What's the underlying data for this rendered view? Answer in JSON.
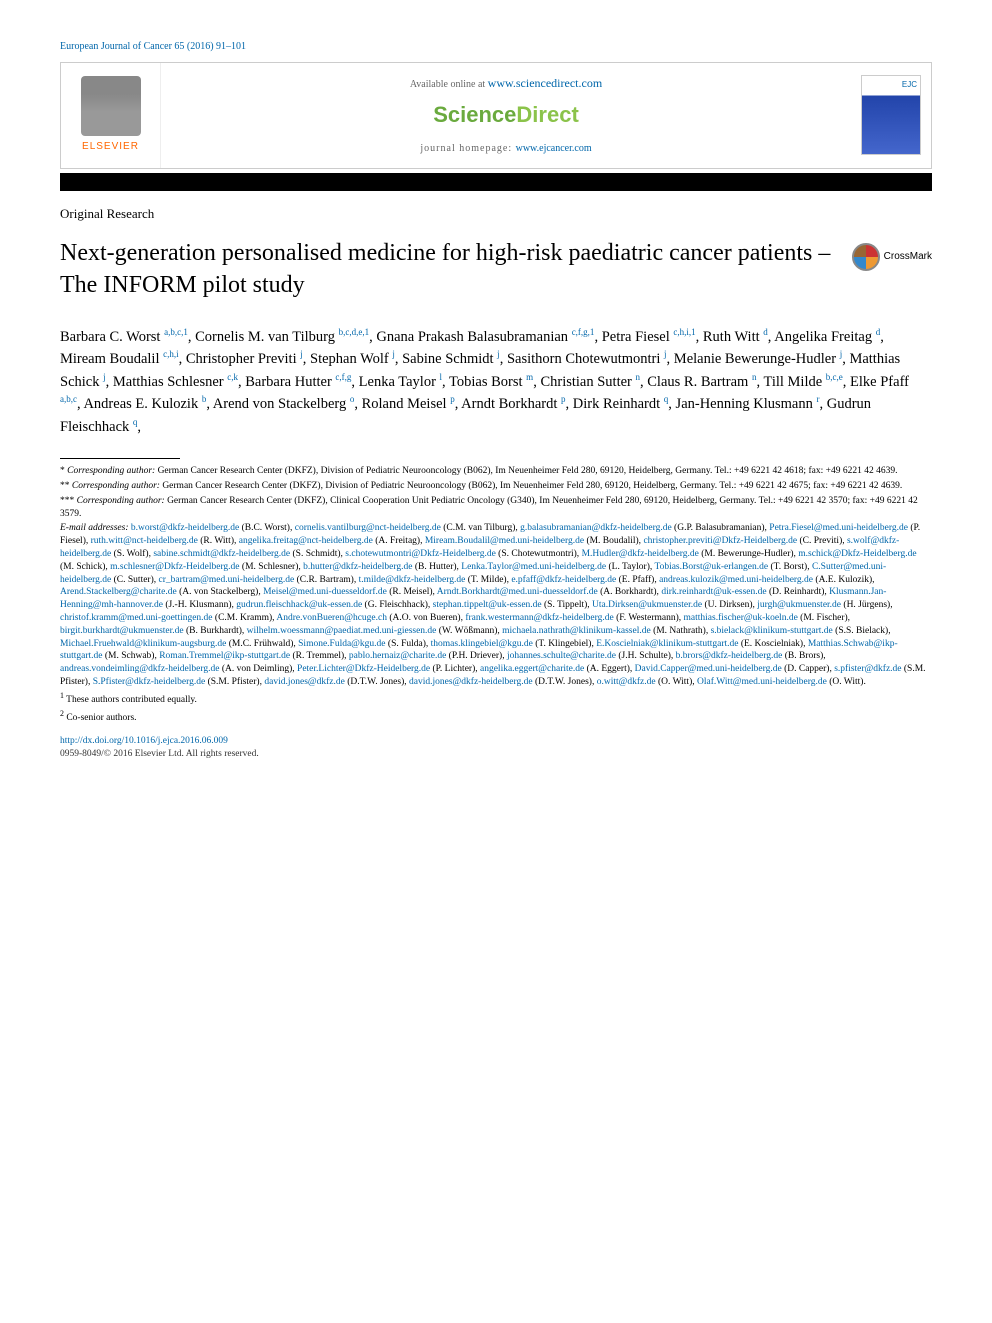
{
  "journal_ref": "European Journal of Cancer 65 (2016) 91–101",
  "header": {
    "available_text": "Available online at ",
    "available_link": "www.sciencedirect.com",
    "sciencedirect_science": "Science",
    "sciencedirect_direct": "Direct",
    "homepage_label": "journal homepage: ",
    "homepage_link": "www.ejcancer.com",
    "elsevier_label": "ELSEVIER",
    "crossmark_label": "CrossMark"
  },
  "article_type": "Original Research",
  "title": "Next-generation personalised medicine for high-risk paediatric cancer patients – The INFORM pilot study",
  "authors": [
    {
      "name": "Barbara C. Worst",
      "aff": "a,b,c,1"
    },
    {
      "name": "Cornelis M. van Tilburg",
      "aff": "b,c,d,e,1"
    },
    {
      "name": "Gnana Prakash Balasubramanian",
      "aff": "c,f,g,1"
    },
    {
      "name": "Petra Fiesel",
      "aff": "c,h,i,1"
    },
    {
      "name": "Ruth Witt",
      "aff": "d"
    },
    {
      "name": "Angelika Freitag",
      "aff": "d"
    },
    {
      "name": "Miream Boudalil",
      "aff": "c,h,i"
    },
    {
      "name": "Christopher Previti",
      "aff": "j"
    },
    {
      "name": "Stephan Wolf",
      "aff": "j"
    },
    {
      "name": "Sabine Schmidt",
      "aff": "j"
    },
    {
      "name": "Sasithorn Chotewutmontri",
      "aff": "j"
    },
    {
      "name": "Melanie Bewerunge-Hudler",
      "aff": "j"
    },
    {
      "name": "Matthias Schick",
      "aff": "j"
    },
    {
      "name": "Matthias Schlesner",
      "aff": "c,k"
    },
    {
      "name": "Barbara Hutter",
      "aff": "c,f,g"
    },
    {
      "name": "Lenka Taylor",
      "aff": "l"
    },
    {
      "name": "Tobias Borst",
      "aff": "m"
    },
    {
      "name": "Christian Sutter",
      "aff": "n"
    },
    {
      "name": "Claus R. Bartram",
      "aff": "n"
    },
    {
      "name": "Till Milde",
      "aff": "b,c,e"
    },
    {
      "name": "Elke Pfaff",
      "aff": "a,b,c"
    },
    {
      "name": "Andreas E. Kulozik",
      "aff": "b"
    },
    {
      "name": "Arend von Stackelberg",
      "aff": "o"
    },
    {
      "name": "Roland Meisel",
      "aff": "p"
    },
    {
      "name": "Arndt Borkhardt",
      "aff": "p"
    },
    {
      "name": "Dirk Reinhardt",
      "aff": "q"
    },
    {
      "name": "Jan-Henning Klusmann",
      "aff": "r"
    },
    {
      "name": "Gudrun Fleischhack",
      "aff": "q"
    }
  ],
  "corresponding": [
    {
      "mark": "*",
      "label": "Corresponding author:",
      "text": " German Cancer Research Center (DKFZ), Division of Pediatric Neurooncology (B062), Im Neuenheimer Feld 280, 69120, Heidelberg, Germany. Tel.: +49 6221 42 4618; fax: +49 6221 42 4639."
    },
    {
      "mark": "**",
      "label": "Corresponding author:",
      "text": " German Cancer Research Center (DKFZ), Division of Pediatric Neurooncology (B062), Im Neuenheimer Feld 280, 69120, Heidelberg, Germany. Tel.: +49 6221 42 4675; fax: +49 6221 42 4639."
    },
    {
      "mark": "***",
      "label": "Corresponding author:",
      "text": " German Cancer Research Center (DKFZ), Clinical Cooperation Unit Pediatric Oncology (G340), Im Neuenheimer Feld 280, 69120, Heidelberg, Germany. Tel.: +49 6221 42 3570; fax: +49 6221 42 3579."
    }
  ],
  "emails_label": "E-mail addresses: ",
  "emails": [
    {
      "email": "b.worst@dkfz-heidelberg.de",
      "person": "(B.C. Worst)"
    },
    {
      "email": "cornelis.vantilburg@nct-heidelberg.de",
      "person": "(C.M. van Tilburg)"
    },
    {
      "email": "g.balasubramanian@dkfz-heidelberg.de",
      "person": "(G.P. Balasubramanian)"
    },
    {
      "email": "Petra.Fiesel@med.uni-heidelberg.de",
      "person": "(P. Fiesel)"
    },
    {
      "email": "ruth.witt@nct-heidelberg.de",
      "person": "(R. Witt)"
    },
    {
      "email": "angelika.freitag@nct-heidelberg.de",
      "person": "(A. Freitag)"
    },
    {
      "email": "Miream.Boudalil@med.uni-heidelberg.de",
      "person": "(M. Boudalil)"
    },
    {
      "email": "christopher.previti@Dkfz-Heidelberg.de",
      "person": "(C. Previti)"
    },
    {
      "email": "s.wolf@dkfz-heidelberg.de",
      "person": "(S. Wolf)"
    },
    {
      "email": "sabine.schmidt@dkfz-heidelberg.de",
      "person": "(S. Schmidt)"
    },
    {
      "email": "s.chotewutmontri@Dkfz-Heidelberg.de",
      "person": "(S. Chotewutmontri)"
    },
    {
      "email": "M.Hudler@dkfz-heidelberg.de",
      "person": "(M. Bewerunge-Hudler)"
    },
    {
      "email": "m.schick@Dkfz-Heidelberg.de",
      "person": "(M. Schick)"
    },
    {
      "email": "m.schlesner@Dkfz-Heidelberg.de",
      "person": "(M. Schlesner)"
    },
    {
      "email": "b.hutter@dkfz-heidelberg.de",
      "person": "(B. Hutter)"
    },
    {
      "email": "Lenka.Taylor@med.uni-heidelberg.de",
      "person": "(L. Taylor)"
    },
    {
      "email": "Tobias.Borst@uk-erlangen.de",
      "person": "(T. Borst)"
    },
    {
      "email": "C.Sutter@med.uni-heidelberg.de",
      "person": "(C. Sutter)"
    },
    {
      "email": "cr_bartram@med.uni-heidelberg.de",
      "person": "(C.R. Bartram)"
    },
    {
      "email": "t.milde@dkfz-heidelberg.de",
      "person": "(T. Milde)"
    },
    {
      "email": "e.pfaff@dkfz-heidelberg.de",
      "person": "(E. Pfaff)"
    },
    {
      "email": "andreas.kulozik@med.uni-heidelberg.de",
      "person": "(A.E. Kulozik)"
    },
    {
      "email": "Arend.Stackelberg@charite.de",
      "person": "(A. von Stackelberg)"
    },
    {
      "email": "Meisel@med.uni-duesseldorf.de",
      "person": "(R. Meisel)"
    },
    {
      "email": "Arndt.Borkhardt@med.uni-duesseldorf.de",
      "person": "(A. Borkhardt)"
    },
    {
      "email": "dirk.reinhardt@uk-essen.de",
      "person": "(D. Reinhardt)"
    },
    {
      "email": "Klusmann.Jan-Henning@mh-hannover.de",
      "person": "(J.-H. Klusmann)"
    },
    {
      "email": "gudrun.fleischhack@uk-essen.de",
      "person": "(G. Fleischhack)"
    },
    {
      "email": "stephan.tippelt@uk-essen.de",
      "person": "(S. Tippelt)"
    },
    {
      "email": "Uta.Dirksen@ukmuenster.de",
      "person": "(U. Dirksen)"
    },
    {
      "email": "jurgh@ukmuenster.de",
      "person": "(H. Jürgens)"
    },
    {
      "email": "christof.kramm@med.uni-goettingen.de",
      "person": "(C.M. Kramm)"
    },
    {
      "email": "Andre.vonBueren@hcuge.ch",
      "person": "(A.O. von Bueren)"
    },
    {
      "email": "frank.westermann@dkfz-heidelberg.de",
      "person": "(F. Westermann)"
    },
    {
      "email": "matthias.fischer@uk-koeln.de",
      "person": "(M. Fischer)"
    },
    {
      "email": "birgit.burkhardt@ukmuenster.de",
      "person": "(B. Burkhardt)"
    },
    {
      "email": "wilhelm.woessmann@paediat.med.uni-giessen.de",
      "person": "(W. Wößmann)"
    },
    {
      "email": "michaela.nathrath@klinikum-kassel.de",
      "person": "(M. Nathrath)"
    },
    {
      "email": "s.bielack@klinikum-stuttgart.de",
      "person": "(S.S. Bielack)"
    },
    {
      "email": "Michael.Fruehwald@klinikum-augsburg.de",
      "person": "(M.C. Frühwald)"
    },
    {
      "email": "Simone.Fulda@kgu.de",
      "person": "(S. Fulda)"
    },
    {
      "email": "thomas.klingebiel@kgu.de",
      "person": "(T. Klingebiel)"
    },
    {
      "email": "E.Koscielniak@klinikum-stuttgart.de",
      "person": "(E. Koscielniak)"
    },
    {
      "email": "Matthias.Schwab@ikp-stuttgart.de",
      "person": "(M. Schwab)"
    },
    {
      "email": "Roman.Tremmel@ikp-stuttgart.de",
      "person": "(R. Tremmel)"
    },
    {
      "email": "pablo.hernaiz@charite.de",
      "person": "(P.H. Driever)"
    },
    {
      "email": "johannes.schulte@charite.de",
      "person": "(J.H. Schulte)"
    },
    {
      "email": "b.brors@dkfz-heidelberg.de",
      "person": "(B. Brors)"
    },
    {
      "email": "andreas.vondeimling@dkfz-heidelberg.de",
      "person": "(A. von Deimling)"
    },
    {
      "email": "Peter.Lichter@Dkfz-Heidelberg.de",
      "person": "(P. Lichter)"
    },
    {
      "email": "angelika.eggert@charite.de",
      "person": "(A. Eggert)"
    },
    {
      "email": "David.Capper@med.uni-heidelberg.de",
      "person": "(D. Capper)"
    },
    {
      "email": "s.pfister@dkfz.de",
      "person": "(S.M. Pfister)"
    },
    {
      "email": "S.Pfister@dkfz-heidelberg.de",
      "person": "(S.M. Pfister)"
    },
    {
      "email": "david.jones@dkfz.de",
      "person": "(D.T.W. Jones)"
    },
    {
      "email": "david.jones@dkfz-heidelberg.de",
      "person": "(D.T.W. Jones)"
    },
    {
      "email": "o.witt@dkfz.de",
      "person": "(O. Witt)"
    },
    {
      "email": "Olaf.Witt@med.uni-heidelberg.de",
      "person": "(O. Witt)"
    }
  ],
  "notes": [
    {
      "mark": "1",
      "text": "These authors contributed equally."
    },
    {
      "mark": "2",
      "text": "Co-senior authors."
    }
  ],
  "doi": "http://dx.doi.org/10.1016/j.ejca.2016.06.009",
  "copyright": "0959-8049/© 2016 Elsevier Ltd. All rights reserved.",
  "colors": {
    "link": "#0066aa",
    "elsevier_orange": "#ff6600",
    "sd_green_dark": "#6aaa3e",
    "sd_green_light": "#8bc34a",
    "text": "#000000",
    "border": "#cccccc"
  }
}
